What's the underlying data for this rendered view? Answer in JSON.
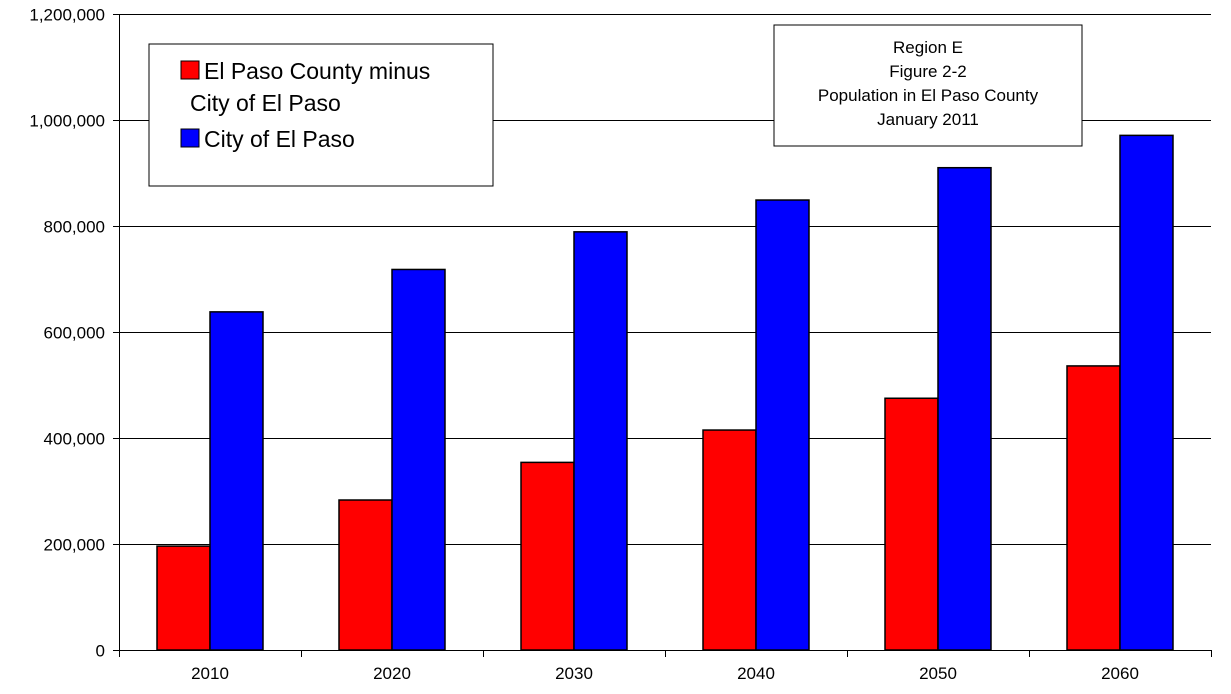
{
  "chart_data": {
    "type": "bar",
    "categories": [
      "2010",
      "2020",
      "2030",
      "2040",
      "2050",
      "2060"
    ],
    "series": [
      {
        "name": "El Paso County minus City of El Paso",
        "legend_lines": [
          "El Paso County minus",
          "City of El Paso"
        ],
        "color": "#ff0000",
        "values": [
          196000,
          283000,
          354000,
          415000,
          475000,
          536000
        ]
      },
      {
        "name": "City of El Paso",
        "legend_lines": [
          "City of El Paso"
        ],
        "color": "#0000ff",
        "values": [
          638000,
          718000,
          789000,
          849000,
          910000,
          971000
        ]
      }
    ],
    "title_lines": [
      "Region E",
      "Figure 2-2",
      "Population in El Paso County",
      "January 2011"
    ],
    "xlabel": "",
    "ylabel": "",
    "ylim": [
      0,
      1200000
    ],
    "yticks": [
      0,
      200000,
      400000,
      600000,
      800000,
      1000000,
      1200000
    ],
    "ytick_labels": [
      "0",
      "200,000",
      "400,000",
      "600,000",
      "800,000",
      "1,000,000",
      "1,200,000"
    ],
    "grid": "horizontal",
    "legend_position": "top-left",
    "title_position": "top-right"
  }
}
